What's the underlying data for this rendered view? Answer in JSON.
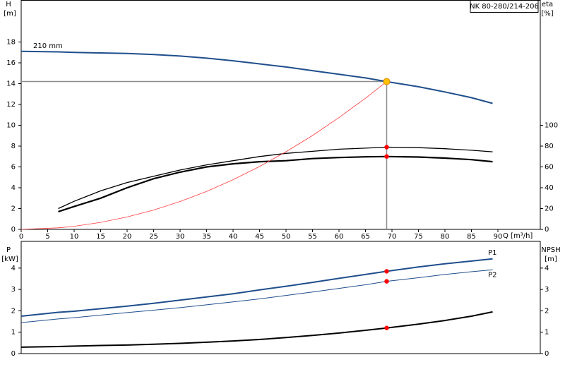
{
  "chart_data": [
    {
      "type": "line",
      "title": "NK 80-280/214-206",
      "x_label": "Q [m³/h]",
      "y_label": "H",
      "y_unit": "[m]",
      "y2_label": "eta",
      "y2_unit": "[%]",
      "xlim": [
        0,
        98
      ],
      "xticks": [
        0,
        5,
        10,
        15,
        20,
        25,
        30,
        35,
        40,
        45,
        50,
        55,
        60,
        65,
        70,
        75,
        80,
        85,
        90
      ],
      "ylim": [
        0,
        22
      ],
      "yticks": [
        0,
        2,
        4,
        6,
        8,
        10,
        12,
        14,
        16,
        18
      ],
      "y2lim": [
        0,
        220
      ],
      "y2ticks": [
        0,
        20,
        40,
        60,
        80,
        100
      ],
      "duty_x": 69,
      "duty_line_color": "#8c8c8c",
      "x": [
        0,
        7,
        10,
        15,
        20,
        25,
        30,
        35,
        40,
        45,
        50,
        55,
        60,
        65,
        69,
        75,
        80,
        85,
        89
      ],
      "series": [
        {
          "name": "210 mm",
          "color": "#1f4e8c",
          "line_width": 2,
          "marker_color": "#ffc000",
          "values": [
            17.1,
            17.05,
            17.0,
            16.95,
            16.9,
            16.8,
            16.65,
            16.45,
            16.2,
            15.9,
            15.6,
            15.25,
            14.9,
            14.55,
            14.2,
            13.7,
            13.2,
            12.65,
            12.1
          ]
        },
        {
          "color": "#000000",
          "line_width": 1.3,
          "axis": "y2",
          "marker_color": "#ff0000",
          "values": [
            null,
            20,
            27,
            37,
            45,
            51,
            57,
            62,
            66,
            70,
            73,
            75,
            77,
            78,
            79,
            78.5,
            77.5,
            76,
            74.5
          ]
        },
        {
          "color": "#000000",
          "line_width": 2.2,
          "axis": "y2",
          "marker_color": "#ff0000",
          "values": [
            null,
            17,
            22,
            30,
            40,
            48.7,
            55,
            60,
            63,
            65,
            66,
            68,
            69,
            69.7,
            70,
            69.5,
            68.5,
            67,
            65
          ]
        },
        {
          "color": "#ff3b3b",
          "line_width": 0.8,
          "values": [
            0,
            0.15,
            0.3,
            0.67,
            1.19,
            1.86,
            2.68,
            3.65,
            4.77,
            6.04,
            7.46,
            9.02,
            10.74,
            12.6,
            14.2,
            null,
            null,
            null,
            null
          ]
        }
      ]
    },
    {
      "type": "line",
      "y_label": "P",
      "y_unit": "[kW]",
      "y2_label": "NPSH",
      "y2_unit": "[m]",
      "xlim": [
        0,
        98
      ],
      "ylim": [
        0,
        5.25
      ],
      "yticks": [
        0,
        1,
        2,
        3,
        4
      ],
      "y2lim": [
        0,
        5.25
      ],
      "y2ticks": [
        0,
        1,
        2,
        3,
        4
      ],
      "duty_x": 69,
      "x": [
        0,
        7,
        10,
        15,
        20,
        25,
        30,
        35,
        40,
        45,
        50,
        55,
        60,
        65,
        69,
        75,
        80,
        85,
        89
      ],
      "series": [
        {
          "name": "P1",
          "color": "#1f4e8c",
          "line_width": 2,
          "marker_color": "#ff0000",
          "values": [
            1.75,
            1.93,
            1.98,
            2.1,
            2.22,
            2.35,
            2.5,
            2.65,
            2.8,
            2.98,
            3.15,
            3.33,
            3.52,
            3.7,
            3.85,
            4.05,
            4.2,
            4.33,
            4.43
          ]
        },
        {
          "name": "P2",
          "color": "#1f4e8c",
          "line_width": 1,
          "marker_color": "#ff0000",
          "values": [
            1.45,
            1.62,
            1.68,
            1.8,
            1.92,
            2.03,
            2.15,
            2.28,
            2.42,
            2.56,
            2.72,
            2.88,
            3.05,
            3.22,
            3.38,
            3.55,
            3.7,
            3.83,
            3.92
          ]
        },
        {
          "color": "#000000",
          "line_width": 2,
          "axis": "y2",
          "marker_color": "#ff0000",
          "values": [
            0.3,
            0.33,
            0.35,
            0.38,
            0.4,
            0.44,
            0.48,
            0.53,
            0.59,
            0.66,
            0.75,
            0.85,
            0.96,
            1.09,
            1.2,
            1.38,
            1.55,
            1.75,
            1.95
          ]
        }
      ]
    }
  ]
}
